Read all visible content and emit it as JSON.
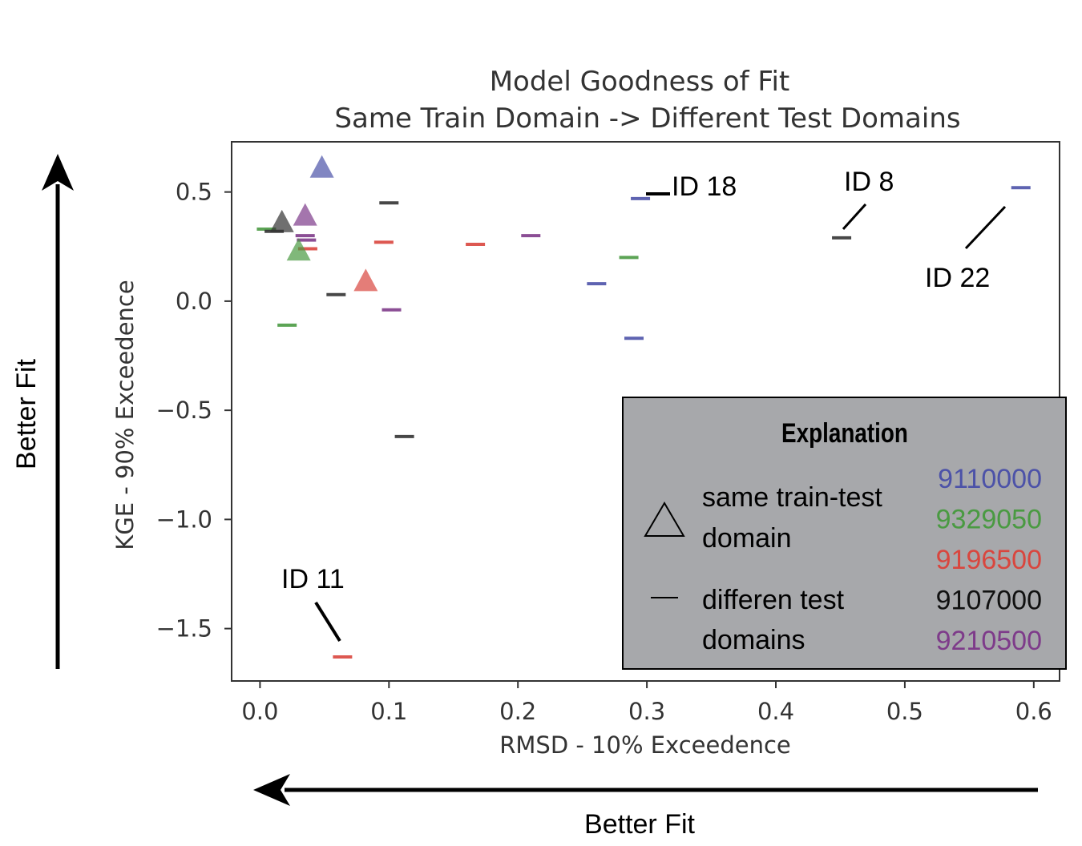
{
  "chart_data": {
    "type": "scatter",
    "title": [
      "Model Goodness of Fit",
      "Same Train Domain -> Different Test Domains"
    ],
    "xlabel": "RMSD - 10% Exceedence",
    "ylabel": "KGE - 90% Exceedence",
    "xlim": [
      -0.022,
      0.62
    ],
    "ylim": [
      -1.74,
      0.73
    ],
    "xticks": [
      0.0,
      0.1,
      0.2,
      0.3,
      0.4,
      0.5,
      0.6
    ],
    "xtick_labels": [
      "0.0",
      "0.1",
      "0.2",
      "0.3",
      "0.4",
      "0.5",
      "0.6"
    ],
    "yticks": [
      0.5,
      0.0,
      -0.5,
      -1.0,
      -1.5
    ],
    "ytick_labels": [
      "0.5",
      "0.0",
      "−0.5",
      "−1.0",
      "−1.5"
    ],
    "grid": false,
    "legend_position": "bottom-right",
    "series": [
      {
        "name": "9110000",
        "color": "#4c52a8",
        "same_domain": [
          {
            "x": 0.048,
            "y": 0.61
          }
        ],
        "different_domains": [
          {
            "x": 0.295,
            "y": 0.47
          },
          {
            "x": 0.261,
            "y": 0.08
          },
          {
            "x": 0.29,
            "y": -0.17
          },
          {
            "x": 0.59,
            "y": 0.52
          }
        ]
      },
      {
        "name": "9329050",
        "color": "#4a9a42",
        "same_domain": [
          {
            "x": 0.03,
            "y": 0.23
          }
        ],
        "different_domains": [
          {
            "x": 0.005,
            "y": 0.33
          },
          {
            "x": 0.021,
            "y": -0.11
          },
          {
            "x": 0.286,
            "y": 0.2
          }
        ]
      },
      {
        "name": "9196500",
        "color": "#d9463e",
        "same_domain": [
          {
            "x": 0.082,
            "y": 0.09
          }
        ],
        "different_domains": [
          {
            "x": 0.037,
            "y": 0.24
          },
          {
            "x": 0.096,
            "y": 0.27
          },
          {
            "x": 0.167,
            "y": 0.26
          },
          {
            "x": 0.064,
            "y": -1.63
          }
        ]
      },
      {
        "name": "9107000",
        "color": "#333333",
        "same_domain": [
          {
            "x": 0.017,
            "y": 0.36
          }
        ],
        "different_domains": [
          {
            "x": 0.1,
            "y": 0.45
          },
          {
            "x": 0.059,
            "y": 0.03
          },
          {
            "x": 0.112,
            "y": -0.62
          },
          {
            "x": 0.451,
            "y": 0.29
          },
          {
            "x": 0.011,
            "y": 0.32
          }
        ]
      },
      {
        "name": "9210500",
        "color": "#7e3b8a",
        "same_domain": [
          {
            "x": 0.035,
            "y": 0.39
          }
        ],
        "different_domains": [
          {
            "x": 0.035,
            "y": 0.3
          },
          {
            "x": 0.036,
            "y": 0.28
          },
          {
            "x": 0.21,
            "y": 0.3
          },
          {
            "x": 0.102,
            "y": -0.04
          }
        ]
      }
    ],
    "annotations": [
      {
        "text": "ID 18",
        "x": 0.3,
        "y": 0.48
      },
      {
        "text": "ID 8",
        "x": 0.451,
        "y": 0.29
      },
      {
        "text": "ID 22",
        "x": 0.59,
        "y": 0.52
      },
      {
        "text": "ID 11",
        "x": 0.064,
        "y": -1.63
      }
    ]
  },
  "legend": {
    "title": "Explanation",
    "triangle_label": [
      "same train-test",
      "domain"
    ],
    "dash_label": [
      "differen test",
      "domains"
    ],
    "ids": [
      {
        "text": "9110000",
        "color": "#4c52a8"
      },
      {
        "text": "9329050",
        "color": "#4a9a42"
      },
      {
        "text": "9196500",
        "color": "#d9463e"
      },
      {
        "text": "9107000",
        "color": "#111111"
      },
      {
        "text": "9210500",
        "color": "#7e3b8a"
      }
    ]
  },
  "arrows": {
    "vertical_label": "Better Fit",
    "horizontal_label": "Better Fit"
  }
}
